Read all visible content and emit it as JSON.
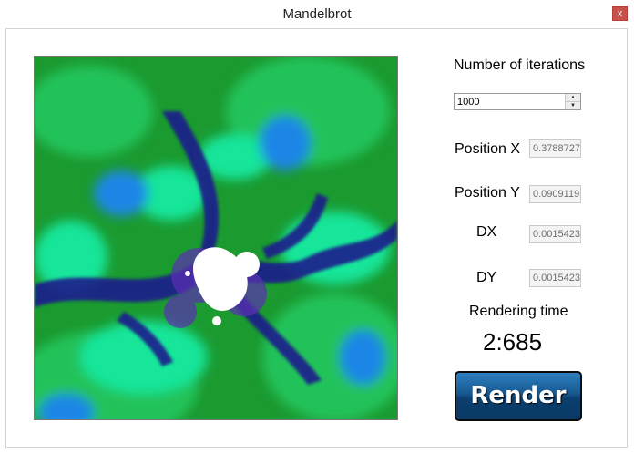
{
  "window": {
    "title": "Mandelbrot",
    "close_label": "x"
  },
  "controls": {
    "iterations_label": "Number of iterations",
    "iterations_value": "1000",
    "position_x_label": "Position X",
    "position_x_value": "0.3788727",
    "position_y_label": "Position Y",
    "position_y_value": "0.0909119",
    "dx_label": "DX",
    "dx_value": "0.0015423",
    "dy_label": "DY",
    "dy_value": "0.0015423",
    "rendering_time_label": "Rendering time",
    "rendering_time_value": "2:685",
    "render_button_label": "Render"
  },
  "colors": {
    "fractal_green": "#1b9a30",
    "fractal_cyan": "#17e59a",
    "fractal_blue": "#1a86e6",
    "fractal_dark": "#1a1a8c",
    "fractal_inner": "#ffffff",
    "render_button": "#17588f"
  },
  "icons": {
    "spin_up": "up-arrow-icon",
    "spin_down": "down-arrow-icon"
  }
}
